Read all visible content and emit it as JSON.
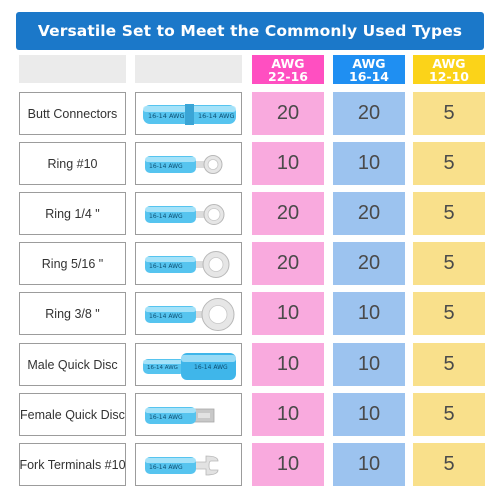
{
  "title": "Versatile Set to Meet the Commonly Used Types",
  "columns": [
    {
      "line1": "AWG",
      "line2": "22-16",
      "color": "#ff4fc1"
    },
    {
      "line1": "AWG",
      "line2": "16-14",
      "color": "#1f8ff2"
    },
    {
      "line1": "AWG",
      "line2": "12-10",
      "color": "#fbd319"
    }
  ],
  "terminal_print": "16-14 AWG",
  "rows": [
    {
      "name": "Butt Connectors",
      "icon": "butt-connector-icon",
      "values": [
        "20",
        "20",
        "5"
      ]
    },
    {
      "name": "Ring #10",
      "icon": "ring-terminal-icon",
      "values": [
        "10",
        "10",
        "5"
      ]
    },
    {
      "name": "Ring 1/4 \"",
      "icon": "ring-terminal-icon",
      "values": [
        "20",
        "20",
        "5"
      ]
    },
    {
      "name": "Ring 5/16 \"",
      "icon": "ring-terminal-icon",
      "values": [
        "20",
        "20",
        "5"
      ]
    },
    {
      "name": "Ring 3/8 \"",
      "icon": "ring-terminal-icon",
      "values": [
        "10",
        "10",
        "5"
      ]
    },
    {
      "name": "Male Quick Disc",
      "icon": "male-quick-disconnect-icon",
      "values": [
        "10",
        "10",
        "5"
      ]
    },
    {
      "name": "Female Quick Disc",
      "icon": "female-quick-disconnect-icon",
      "values": [
        "10",
        "10",
        "5"
      ]
    },
    {
      "name": "Fork Terminals #10",
      "icon": "fork-terminal-icon",
      "values": [
        "10",
        "10",
        "5"
      ]
    }
  ]
}
